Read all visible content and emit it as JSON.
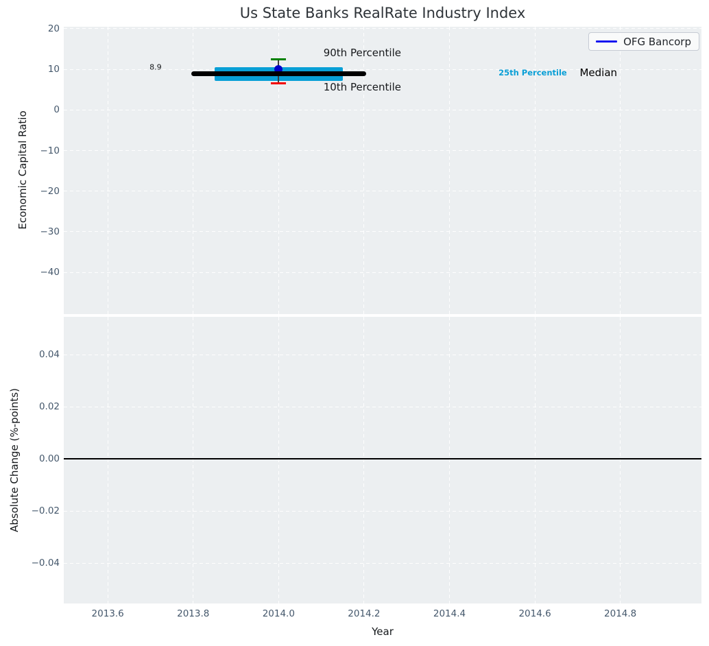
{
  "title": "Us State Banks RealRate Industry Index",
  "colors": {
    "plot_bg": "#eceff1",
    "grid_line": "#ffffff",
    "tick_label": "#44576b",
    "axis_label": "#15181b",
    "title": "#2e3338",
    "median_line": "#000000",
    "iqr_band": "#089fd6",
    "p90_cap": "#008000",
    "p10_cap": "#f20000",
    "whisker": "#3c3c3c",
    "company_dot": "#0000c8",
    "legend_line": "#1414f0",
    "zero_line": "#000000"
  },
  "chart_data": [
    {
      "type": "scatter",
      "panel": "top",
      "title": "Us State Banks RealRate Industry Index",
      "ylabel": "Economic Capital Ratio",
      "xlim": [
        2013.497,
        2014.99
      ],
      "ylim": [
        -50.3,
        20.5
      ],
      "yticks": [
        20,
        10,
        0,
        -10,
        -20,
        -30,
        -40
      ],
      "ytick_labels": [
        "20",
        "10",
        "0",
        "−10",
        "−20",
        "−30",
        "−40"
      ],
      "grid": true,
      "legend": {
        "label": "OFG Bancorp",
        "position": "upper right"
      },
      "company": {
        "name": "OFG Bancorp",
        "year": 2014.0,
        "value": 10.0
      },
      "industry": {
        "median": 8.9,
        "median_span": [
          2013.8,
          2014.2
        ],
        "p25": 7.2,
        "p75": 10.5,
        "iqr_span": [
          2013.85,
          2014.15
        ],
        "p10": 6.5,
        "p90": 12.4,
        "whisker_x": 2014.0
      },
      "annotations": [
        {
          "id": "median-value",
          "text": "8.9",
          "x": 2013.712,
          "y": 10.6,
          "size": 11,
          "weight": "normal",
          "color": "#17191c",
          "align": "center"
        },
        {
          "id": "p90-label",
          "text": "90th Percentile",
          "x": 2014.105,
          "y": 14.0,
          "size": 15,
          "weight": "normal",
          "color": "#17191c",
          "align": "left"
        },
        {
          "id": "p10-label",
          "text": "10th Percentile",
          "x": 2014.105,
          "y": 5.7,
          "size": 15,
          "weight": "normal",
          "color": "#17191c",
          "align": "left"
        },
        {
          "id": "p25-label",
          "text": "25th Percentile",
          "x": 2014.515,
          "y": 9.1,
          "size": 11.5,
          "weight": "bold",
          "color": "#0a9fd6",
          "align": "left"
        },
        {
          "id": "median-label",
          "text": "Median",
          "x": 2014.705,
          "y": 9.1,
          "size": 15,
          "weight": "normal",
          "color": "#000000",
          "align": "left"
        }
      ]
    },
    {
      "type": "line",
      "panel": "bottom",
      "ylabel": "Absolute Change (%-points)",
      "xlabel": "Year",
      "xlim": [
        2013.497,
        2014.99
      ],
      "ylim": [
        -0.0555,
        0.0545
      ],
      "xticks": [
        2013.6,
        2013.8,
        2014.0,
        2014.2,
        2014.4,
        2014.6,
        2014.8
      ],
      "xtick_labels": [
        "2013.6",
        "2013.8",
        "2014.0",
        "2014.2",
        "2014.4",
        "2014.6",
        "2014.8"
      ],
      "yticks": [
        0.04,
        0.02,
        0,
        -0.02,
        -0.04
      ],
      "ytick_labels": [
        "0.04",
        "0.02",
        "0.00",
        "−0.02",
        "−0.04"
      ],
      "grid": true,
      "zero_line": 0.0,
      "series": []
    }
  ]
}
